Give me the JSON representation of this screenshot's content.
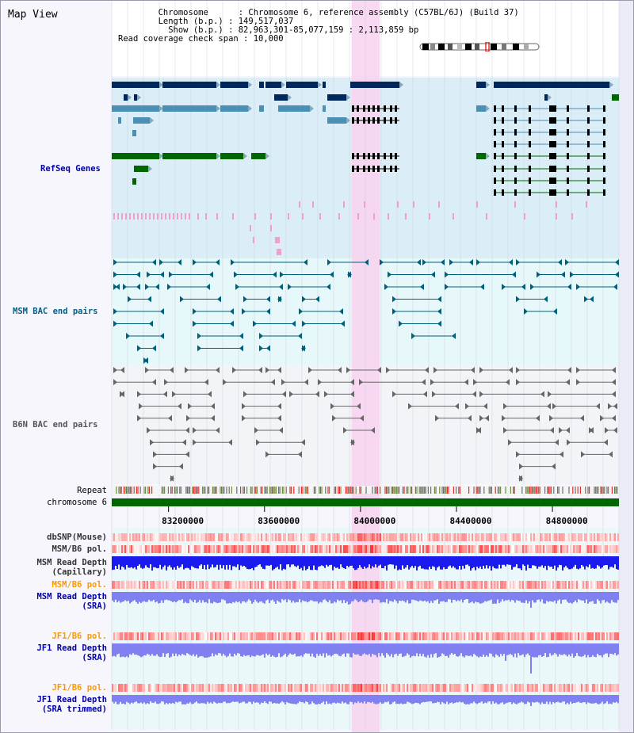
{
  "title": "Map View",
  "info": {
    "chromosome_key": "Chromosome      : ",
    "chromosome_val": "Chromosome 6, reference assembly (C57BL/6J) (Build 37)",
    "length_key": "Length (b.p.) : ",
    "length_val": "149,517,037",
    "show_key": "  Show (b.p.) : ",
    "show_val": "82,963,301-85,077,159 : 2,113,859 bp",
    "read_key": "Read coverage check span : ",
    "read_val": "10,000"
  },
  "view": {
    "start": 82963301,
    "end": 85077159,
    "highlight": [
      83963000,
      84080000
    ]
  },
  "ticks": {
    "values": [
      83200000,
      83600000,
      84000000,
      84400000,
      84800000
    ],
    "labels": [
      "83200000",
      "83600000",
      "84000000",
      "84400000",
      "84800000"
    ]
  },
  "tracks": {
    "refseq": {
      "label": "RefSeq Genes",
      "color": "#0000aa"
    },
    "msm_bac": {
      "label": "MSM BAC end pairs",
      "color": "#005f87"
    },
    "b6n_bac": {
      "label": "B6N BAC end pairs",
      "color": "#555555"
    },
    "repeat": {
      "label": "Repeat",
      "color": "#000000"
    },
    "chromosome": {
      "label": "chromosome 6",
      "color": "#000000"
    },
    "dbsnp": {
      "label": "dbSNP(Mouse)",
      "color": "#333333"
    },
    "msm_pol1": {
      "label": "MSM/B6 pol.",
      "color": "#333333"
    },
    "msm_depth_cap": {
      "label1": "MSM Read Depth",
      "label2": "(Capillary)",
      "color": "#333333"
    },
    "msm_pol2": {
      "label": "MSM/B6 pol.",
      "color": "#ff9900"
    },
    "msm_depth_sra": {
      "label1": "MSM Read Depth",
      "label2": "(SRA)",
      "color": "#0000aa"
    },
    "jf1_pol1": {
      "label": "JF1/B6 pol.",
      "color": "#ff9900"
    },
    "jf1_depth_sra": {
      "label1": "JF1 Read Depth",
      "label2": "(SRA)",
      "color": "#0000aa"
    },
    "jf1_pol2": {
      "label": "JF1/B6 pol.",
      "color": "#ff9900"
    },
    "jf1_depth_trim": {
      "label1": "JF1 Read Depth",
      "label2": "(SRA trimmed)",
      "color": "#0000aa"
    }
  },
  "colors": {
    "refseq_bg": "#dbeef8",
    "msm_bg": "#e6f8fa",
    "b6n_bg": "#f2f4f8",
    "bottom_bg": "#eaf8fa",
    "highlight": "#f8d4f0",
    "chromosome_bar": "#006600",
    "gene_dark": "#00285c",
    "gene_mid": "#4a90b4",
    "gene_green": "#006600",
    "msm_pair": "#00607c",
    "b6n_pair": "#666666",
    "depth_dark": "#1a1aee",
    "depth_light": "#8080f0",
    "pol_red": "#ff5050"
  }
}
